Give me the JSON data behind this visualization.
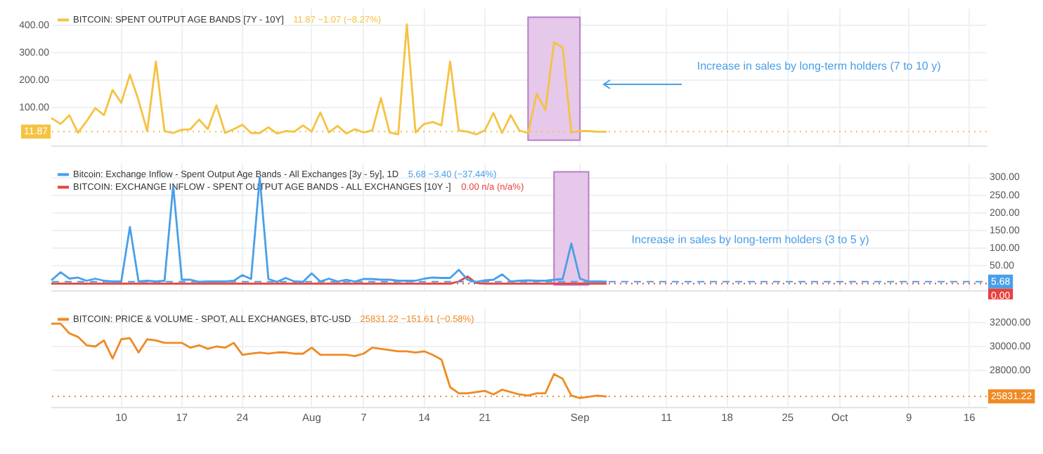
{
  "chart_data": [
    {
      "type": "line",
      "x": [
        "--07-02",
        "--07-03",
        "--07-04",
        "--07-05",
        "--07-06",
        "--07-07",
        "--07-08",
        "--07-09",
        "--07-10",
        "--07-11",
        "--07-12",
        "--07-13",
        "--07-14",
        "--07-15",
        "--07-16",
        "--07-17",
        "--07-18",
        "--07-19",
        "--07-20",
        "--07-21",
        "--07-22",
        "--07-23",
        "--07-24",
        "--07-25",
        "--07-26",
        "--07-27",
        "--07-28",
        "--07-29",
        "--07-30",
        "--07-31",
        "--08-01",
        "--08-02",
        "--08-03",
        "--08-04",
        "--08-05",
        "--08-06",
        "--08-07",
        "--08-08",
        "--08-09",
        "--08-10",
        "--08-11",
        "--08-12",
        "--08-13",
        "--08-14",
        "--08-15",
        "--08-16",
        "--08-17",
        "--08-18",
        "--08-19",
        "--08-20",
        "--08-21",
        "--08-22",
        "--08-23",
        "--08-24",
        "--08-25",
        "--08-26",
        "--08-27",
        "--08-28",
        "--08-29",
        "--08-30",
        "--08-31",
        "--09-01",
        "--09-02",
        "--09-03",
        "--09-04"
      ],
      "series": [
        {
          "name": "BITCOIN: SPENT OUTPUT AGE BANDS [7Y - 10Y]",
          "color": "#f5c242",
          "values": [
            60,
            40,
            72,
            8,
            50,
            98,
            72,
            164,
            117,
            220,
            126,
            14,
            267,
            14,
            7,
            19,
            21,
            56,
            21,
            108,
            7,
            21,
            37,
            7,
            7,
            28,
            5,
            14,
            12,
            35,
            12,
            82,
            9,
            33,
            5,
            21,
            9,
            16,
            134,
            9,
            2,
            403,
            9,
            40,
            47,
            35,
            267,
            16,
            12,
            2,
            16,
            80,
            7,
            72,
            16,
            7,
            150,
            91,
            337,
            319,
            9,
            14,
            14,
            12,
            11.87
          ]
        }
      ],
      "annotations": [
        "11.87 −1.07 (−8.27%)",
        "Increase in sales by long-term holders (7 to 10 y)"
      ],
      "bands": [
        {
          "axis": "x",
          "from": "--08-26",
          "to": "--09-01",
          "color": "#e6c8ea"
        }
      ],
      "ref_lines": [
        {
          "axis": "y",
          "value": 11.87,
          "label": "11.87",
          "color": "#f5c242"
        }
      ],
      "xlim": [
        "--07-02",
        "--10-18"
      ],
      "xticks": [
        {
          "value": "--07-10",
          "label": "10"
        },
        {
          "value": "--07-17",
          "label": "17"
        },
        {
          "value": "--07-24",
          "label": "24"
        },
        {
          "value": "--08-01",
          "label": "Aug"
        },
        {
          "value": "--08-07",
          "label": "7"
        },
        {
          "value": "--08-14",
          "label": "14"
        },
        {
          "value": "--08-21",
          "label": "21"
        },
        {
          "value": "--09-01",
          "label": "Sep"
        },
        {
          "value": "--09-11",
          "label": "11"
        },
        {
          "value": "--09-18",
          "label": "18"
        },
        {
          "value": "--09-25",
          "label": "25"
        },
        {
          "value": "--10-01",
          "label": "Oct"
        },
        {
          "value": "--10-09",
          "label": "9"
        },
        {
          "value": "--10-16",
          "label": "16"
        }
      ],
      "ylim": [
        -40,
        460
      ],
      "yticks": [
        {
          "value": 100,
          "label": "100.00"
        },
        {
          "value": 200,
          "label": "200.00"
        },
        {
          "value": 300,
          "label": "300.00"
        },
        {
          "value": 400,
          "label": "400.00"
        }
      ],
      "tick_labels": "y",
      "grid": true,
      "legend": "top left",
      "marker": "none"
    },
    {
      "type": "line",
      "x": [
        "--07-02",
        "--07-03",
        "--07-04",
        "--07-05",
        "--07-06",
        "--07-07",
        "--07-08",
        "--07-09",
        "--07-10",
        "--07-11",
        "--07-12",
        "--07-13",
        "--07-14",
        "--07-15",
        "--07-16",
        "--07-17",
        "--07-18",
        "--07-19",
        "--07-20",
        "--07-21",
        "--07-22",
        "--07-23",
        "--07-24",
        "--07-25",
        "--07-26",
        "--07-27",
        "--07-28",
        "--07-29",
        "--07-30",
        "--07-31",
        "--08-01",
        "--08-02",
        "--08-03",
        "--08-04",
        "--08-05",
        "--08-06",
        "--08-07",
        "--08-08",
        "--08-09",
        "--08-10",
        "--08-11",
        "--08-12",
        "--08-13",
        "--08-14",
        "--08-15",
        "--08-16",
        "--08-17",
        "--08-18",
        "--08-19",
        "--08-20",
        "--08-21",
        "--08-22",
        "--08-23",
        "--08-24",
        "--08-25",
        "--08-26",
        "--08-27",
        "--08-28",
        "--08-29",
        "--08-30",
        "--08-31",
        "--09-01",
        "--09-02",
        "--09-03",
        "--09-04"
      ],
      "series": [
        {
          "name": "Bitcoin: Exchange Inflow - Spent Output Age Bands - All Exchanges [3y - 5y], 1D",
          "color": "#4a9fe8",
          "values": [
            11,
            32,
            14,
            17,
            8,
            14,
            8,
            6,
            6,
            160,
            6,
            8,
            6,
            8,
            277,
            11,
            11,
            5,
            6,
            6,
            6,
            8,
            24,
            13,
            300,
            13,
            5,
            16,
            6,
            5,
            29,
            6,
            14,
            6,
            11,
            6,
            13,
            13,
            11,
            11,
            8,
            8,
            8,
            14,
            17,
            16,
            16,
            39,
            11,
            5,
            9,
            11,
            26,
            6,
            8,
            9,
            8,
            8,
            11,
            13,
            113,
            14,
            6,
            6,
            5.68
          ]
        },
        {
          "name": "BITCOIN: EXCHANGE INFLOW - SPENT OUTPUT AGE BANDS - ALL EXCHANGES [10Y -]",
          "color": "#e8413c",
          "values": [
            0,
            0,
            0,
            0,
            0,
            0,
            0,
            0,
            0,
            0,
            0,
            0,
            0,
            0,
            0,
            0,
            0,
            0,
            0,
            0,
            0,
            0,
            0,
            0,
            0,
            0,
            0,
            0,
            0,
            0,
            0,
            0,
            0,
            0,
            0,
            0,
            0,
            0,
            0,
            0,
            0,
            0,
            0,
            0,
            0,
            0,
            0,
            6,
            20,
            2,
            0,
            0,
            0,
            0,
            0,
            0,
            0,
            0,
            0,
            0,
            0,
            0,
            0,
            0,
            0
          ]
        }
      ],
      "annotations": [
        "5.68 −3.40 (−37.44%)",
        "0.00 n/a (n/a%)",
        "Increase in sales by long-term holders (3 to 5 y)"
      ],
      "bands": [
        {
          "axis": "x",
          "from": "--08-29",
          "to": "--09-02",
          "color": "#e6c8ea"
        }
      ],
      "ref_lines": [
        {
          "axis": "y",
          "value": 5.68,
          "label": "5.68",
          "color": "#4a9fe8",
          "line_style": "dashed"
        },
        {
          "axis": "y",
          "value": 0,
          "label": "0.00",
          "color": "#e8413c"
        }
      ],
      "xlim": [
        "--07-02",
        "--10-18"
      ],
      "xticks": [
        {
          "value": "--07-10",
          "label": "10"
        },
        {
          "value": "--07-17",
          "label": "17"
        },
        {
          "value": "--07-24",
          "label": "24"
        },
        {
          "value": "--08-01",
          "label": "Aug"
        },
        {
          "value": "--08-07",
          "label": "7"
        },
        {
          "value": "--08-14",
          "label": "14"
        },
        {
          "value": "--08-21",
          "label": "21"
        },
        {
          "value": "--09-01",
          "label": "Sep"
        },
        {
          "value": "--09-11",
          "label": "11"
        },
        {
          "value": "--09-18",
          "label": "18"
        },
        {
          "value": "--09-25",
          "label": "25"
        },
        {
          "value": "--10-01",
          "label": "Oct"
        },
        {
          "value": "--10-09",
          "label": "9"
        },
        {
          "value": "--10-16",
          "label": "16"
        }
      ],
      "ylim": [
        -20,
        340
      ],
      "yticks": [
        {
          "value": 50,
          "label": "50.00"
        },
        {
          "value": 100,
          "label": "100.00"
        },
        {
          "value": 150,
          "label": "150.00"
        },
        {
          "value": 200,
          "label": "200.00"
        },
        {
          "value": 250,
          "label": "250.00"
        },
        {
          "value": 300,
          "label": "300.00"
        }
      ],
      "tick_labels": "y",
      "grid": true,
      "legend": "top left",
      "marker": "none"
    },
    {
      "type": "line",
      "x": [
        "--07-02",
        "--07-03",
        "--07-04",
        "--07-05",
        "--07-06",
        "--07-07",
        "--07-08",
        "--07-09",
        "--07-10",
        "--07-11",
        "--07-12",
        "--07-13",
        "--07-14",
        "--07-15",
        "--07-16",
        "--07-17",
        "--07-18",
        "--07-19",
        "--07-20",
        "--07-21",
        "--07-22",
        "--07-23",
        "--07-24",
        "--07-25",
        "--07-26",
        "--07-27",
        "--07-28",
        "--07-29",
        "--07-30",
        "--07-31",
        "--08-01",
        "--08-02",
        "--08-03",
        "--08-04",
        "--08-05",
        "--08-06",
        "--08-07",
        "--08-08",
        "--08-09",
        "--08-10",
        "--08-11",
        "--08-12",
        "--08-13",
        "--08-14",
        "--08-15",
        "--08-16",
        "--08-17",
        "--08-18",
        "--08-19",
        "--08-20",
        "--08-21",
        "--08-22",
        "--08-23",
        "--08-24",
        "--08-25",
        "--08-26",
        "--08-27",
        "--08-28",
        "--08-29",
        "--08-30",
        "--08-31",
        "--09-01",
        "--09-02",
        "--09-03",
        "--09-04"
      ],
      "series": [
        {
          "name": "BITCOIN: PRICE & VOLUME - SPOT, ALL EXCHANGES, BTC-USD",
          "color": "#f08a24",
          "values": [
            31900,
            31900,
            31100,
            30800,
            30100,
            30000,
            30500,
            29000,
            30600,
            30700,
            29500,
            30600,
            30500,
            30300,
            30300,
            30300,
            29900,
            30100,
            29800,
            30000,
            29900,
            30300,
            29300,
            29400,
            29500,
            29400,
            29500,
            29500,
            29400,
            29400,
            29900,
            29300,
            29300,
            29300,
            29300,
            29200,
            29400,
            29900,
            29800,
            29700,
            29600,
            29600,
            29500,
            29600,
            29300,
            28900,
            26600,
            26100,
            26100,
            26200,
            26300,
            26000,
            26400,
            26200,
            26000,
            25900,
            26100,
            26100,
            27700,
            27300,
            25900,
            25700,
            25800,
            25900,
            25831.22
          ]
        }
      ],
      "annotations": [
        "25831.22 −151.61 (−0.58%)"
      ],
      "ref_lines": [
        {
          "axis": "y",
          "value": 25831.22,
          "label": "25831.22",
          "color": "#f08a24"
        }
      ],
      "xlim": [
        "--07-02",
        "--10-18"
      ],
      "xticks": [
        {
          "value": "--07-10",
          "label": "10"
        },
        {
          "value": "--07-17",
          "label": "17"
        },
        {
          "value": "--07-24",
          "label": "24"
        },
        {
          "value": "--08-01",
          "label": "Aug"
        },
        {
          "value": "--08-07",
          "label": "7"
        },
        {
          "value": "--08-14",
          "label": "14"
        },
        {
          "value": "--08-21",
          "label": "21"
        },
        {
          "value": "--09-01",
          "label": "Sep"
        },
        {
          "value": "--09-11",
          "label": "11"
        },
        {
          "value": "--09-18",
          "label": "18"
        },
        {
          "value": "--09-25",
          "label": "25"
        },
        {
          "value": "--10-01",
          "label": "Oct"
        },
        {
          "value": "--10-09",
          "label": "9"
        },
        {
          "value": "--10-16",
          "label": "16"
        }
      ],
      "ylim": [
        24900,
        33200
      ],
      "yticks": [
        {
          "value": 28000,
          "label": "28000.00"
        },
        {
          "value": 30000,
          "label": "30000.00"
        },
        {
          "value": 32000,
          "label": "32000.00"
        }
      ],
      "grid": true,
      "legend": "top left",
      "marker": "none"
    }
  ]
}
